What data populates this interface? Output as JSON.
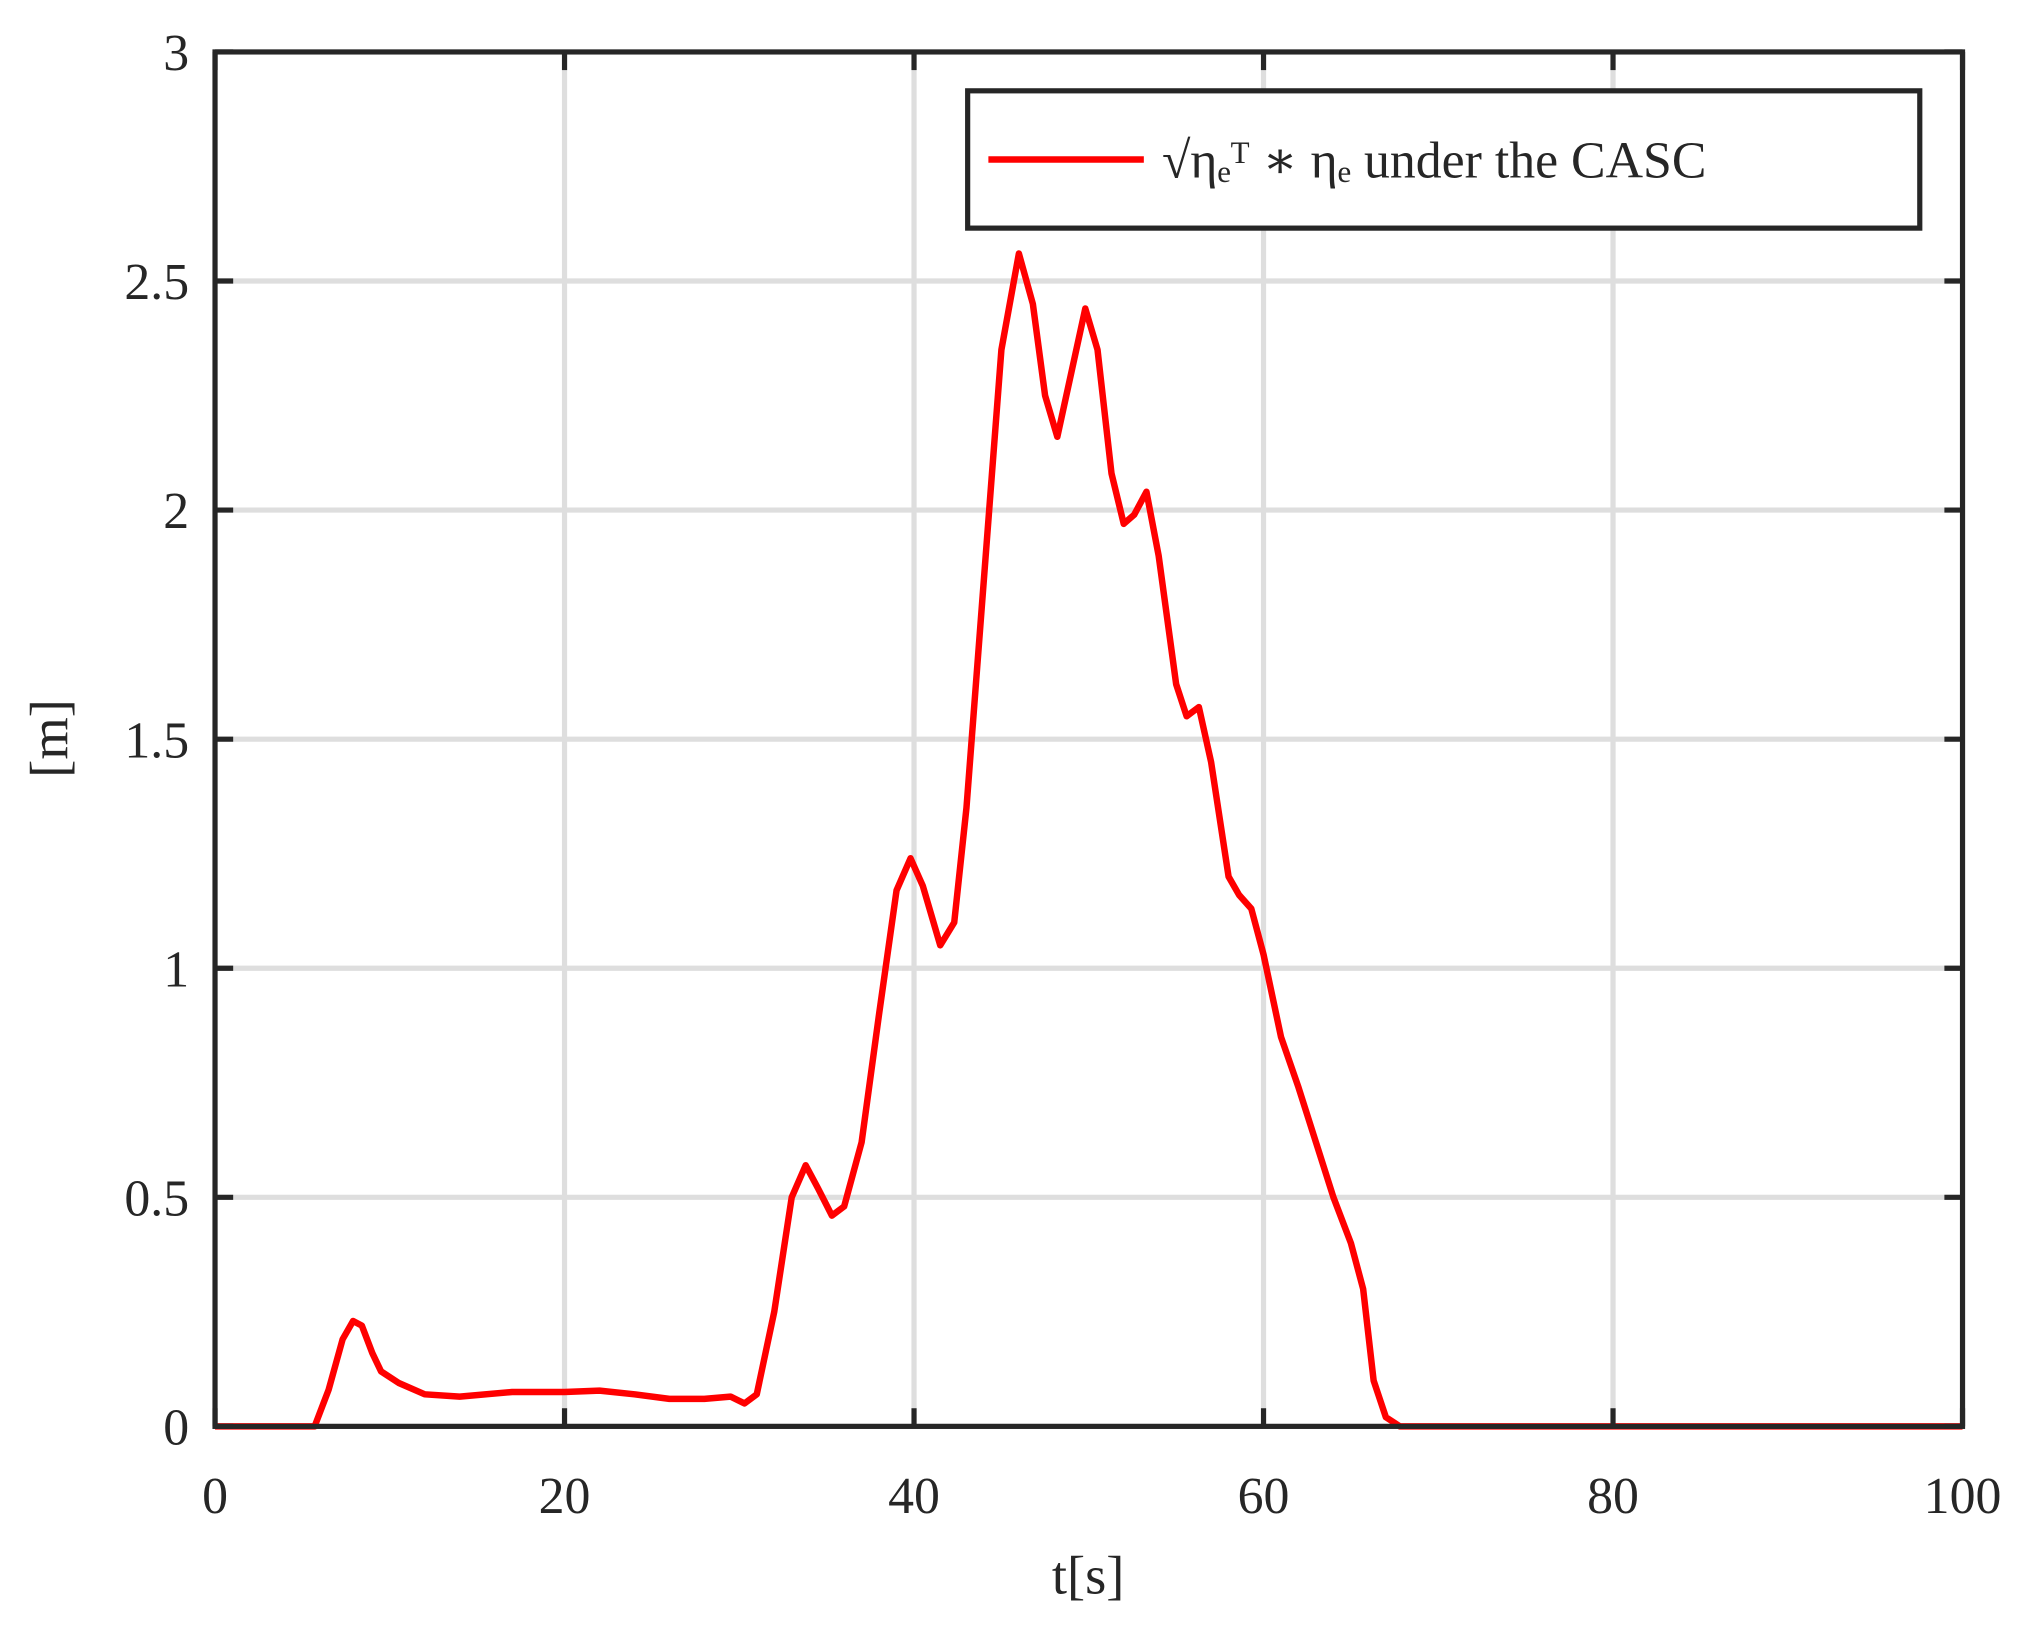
{
  "chart_data": {
    "type": "line",
    "xlabel": "t[s]",
    "ylabel": "[m]",
    "x": [
      0,
      5.7,
      6.5,
      7.3,
      7.9,
      8.4,
      9,
      9.5,
      10.5,
      12,
      14,
      17,
      20,
      22,
      24,
      26,
      28,
      29.5,
      30.3,
      31,
      32,
      33,
      33.8,
      34.5,
      35.3,
      36,
      37,
      38,
      39,
      39.8,
      40.5,
      41.5,
      42.3,
      43,
      44,
      45,
      46,
      46.8,
      47.5,
      48.2,
      49,
      49.8,
      50.5,
      51.3,
      52,
      52.6,
      53.3,
      54,
      55,
      55.6,
      56.3,
      57,
      58,
      58.6,
      59.3,
      60,
      61,
      62,
      63,
      64,
      65,
      65.7,
      66.3,
      67,
      67.8,
      100
    ],
    "series": [
      {
        "name": "√ηₑᵀ ∗ ηₑ under the CASC",
        "color": "#ff0000",
        "values": [
          0,
          0,
          0.08,
          0.19,
          0.23,
          0.22,
          0.16,
          0.12,
          0.095,
          0.07,
          0.065,
          0.075,
          0.075,
          0.078,
          0.07,
          0.06,
          0.06,
          0.065,
          0.05,
          0.07,
          0.25,
          0.5,
          0.57,
          0.52,
          0.46,
          0.48,
          0.62,
          0.9,
          1.17,
          1.24,
          1.18,
          1.05,
          1.1,
          1.35,
          1.85,
          2.35,
          2.56,
          2.45,
          2.25,
          2.16,
          2.3,
          2.44,
          2.35,
          2.08,
          1.97,
          1.99,
          2.04,
          1.9,
          1.62,
          1.55,
          1.57,
          1.45,
          1.2,
          1.16,
          1.13,
          1.03,
          0.85,
          0.74,
          0.62,
          0.5,
          0.4,
          0.3,
          0.1,
          0.02,
          0,
          0
        ]
      }
    ],
    "xlim": [
      0,
      100
    ],
    "xticks": [
      0,
      20,
      40,
      60,
      80,
      100
    ],
    "ylim": [
      0,
      3
    ],
    "yticks": [
      0,
      0.5,
      1,
      1.5,
      2,
      2.5,
      3
    ],
    "grid": true,
    "legend": "top-right"
  }
}
